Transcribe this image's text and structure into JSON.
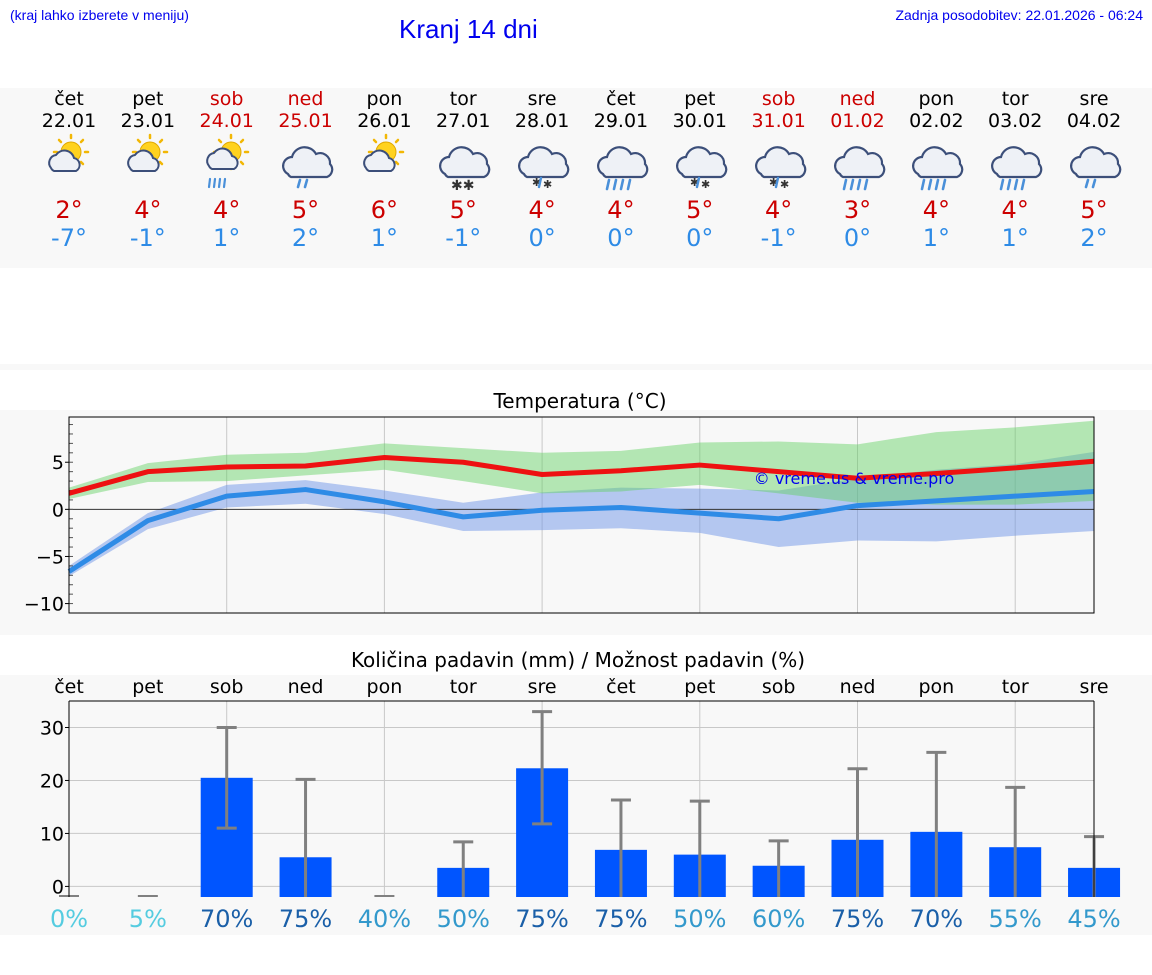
{
  "header": {
    "hint": "(kraj lahko izberete v meniju)",
    "title": "Kranj 14 dni",
    "updated_label": "Zadnja posodobitev:",
    "updated_value": "22.01.2026 - 06:24"
  },
  "colors": {
    "link": "#0000ee",
    "max": "#cc0000",
    "min": "#2e8be6",
    "bar": "#0055ff",
    "pct_low": "#55cce0",
    "pct_mid": "#3399cc",
    "pct_high": "#1a5fa8"
  },
  "days": [
    {
      "name": "čet",
      "date": "22.01",
      "weekend": false,
      "icon": "sun-cloud",
      "tmax": "2°",
      "tmin": "-7°"
    },
    {
      "name": "pet",
      "date": "23.01",
      "weekend": false,
      "icon": "sun-cloud",
      "tmax": "4°",
      "tmin": "-1°"
    },
    {
      "name": "sob",
      "date": "24.01",
      "weekend": true,
      "icon": "sun-cloud-rain",
      "tmax": "4°",
      "tmin": "1°"
    },
    {
      "name": "ned",
      "date": "25.01",
      "weekend": true,
      "icon": "cloud-rain",
      "tmax": "5°",
      "tmin": "2°"
    },
    {
      "name": "pon",
      "date": "26.01",
      "weekend": false,
      "icon": "sun-cloud",
      "tmax": "6°",
      "tmin": "1°"
    },
    {
      "name": "tor",
      "date": "27.01",
      "weekend": false,
      "icon": "cloud-snow",
      "tmax": "5°",
      "tmin": "-1°"
    },
    {
      "name": "sre",
      "date": "28.01",
      "weekend": false,
      "icon": "cloud-sleet",
      "tmax": "4°",
      "tmin": "0°"
    },
    {
      "name": "čet",
      "date": "29.01",
      "weekend": false,
      "icon": "cloud-heavy-rain",
      "tmax": "4°",
      "tmin": "0°"
    },
    {
      "name": "pet",
      "date": "30.01",
      "weekend": false,
      "icon": "cloud-sleet",
      "tmax": "5°",
      "tmin": "0°"
    },
    {
      "name": "sob",
      "date": "31.01",
      "weekend": true,
      "icon": "cloud-sleet",
      "tmax": "4°",
      "tmin": "-1°"
    },
    {
      "name": "ned",
      "date": "01.02",
      "weekend": true,
      "icon": "cloud-heavy-rain",
      "tmax": "3°",
      "tmin": "0°"
    },
    {
      "name": "pon",
      "date": "02.02",
      "weekend": false,
      "icon": "cloud-heavy-rain",
      "tmax": "4°",
      "tmin": "1°"
    },
    {
      "name": "tor",
      "date": "03.02",
      "weekend": false,
      "icon": "cloud-heavy-rain",
      "tmax": "4°",
      "tmin": "1°"
    },
    {
      "name": "sre",
      "date": "04.02",
      "weekend": false,
      "icon": "cloud-rain",
      "tmax": "5°",
      "tmin": "2°"
    }
  ],
  "chart_data": [
    {
      "type": "line",
      "title": "Temperatura (°C)",
      "watermark": "© vreme.us & vreme.pro",
      "ylim": [
        -11,
        9.8
      ],
      "yticks": [
        -10,
        -5,
        0,
        5
      ],
      "ytick_labels": [
        "−10",
        "−5",
        "0",
        "5"
      ],
      "x": [
        0,
        1,
        2,
        3,
        4,
        5,
        6,
        7,
        8,
        9,
        10,
        11,
        12,
        13
      ],
      "series": [
        {
          "name": "max",
          "values": [
            1.7,
            4.0,
            4.5,
            4.6,
            5.5,
            5.0,
            3.7,
            4.1,
            4.7,
            4.0,
            3.3,
            3.8,
            4.4,
            5.1
          ],
          "band_low": [
            1.1,
            2.9,
            3.0,
            3.6,
            4.2,
            3.0,
            1.7,
            1.9,
            2.6,
            1.7,
            0.7,
            0.5,
            0.5,
            0.9
          ],
          "band_high": [
            2.3,
            4.9,
            5.8,
            6.0,
            7.0,
            6.5,
            6.0,
            6.2,
            7.1,
            7.2,
            6.9,
            8.2,
            8.7,
            9.4
          ]
        },
        {
          "name": "min",
          "values": [
            -6.6,
            -1.2,
            1.4,
            2.1,
            0.8,
            -0.8,
            -0.1,
            0.2,
            -0.4,
            -1.0,
            0.4,
            0.9,
            1.4,
            1.9
          ],
          "band_low": [
            -7.1,
            -2.1,
            0.2,
            0.6,
            -0.5,
            -2.3,
            -2.2,
            -2.0,
            -2.5,
            -4.0,
            -3.3,
            -3.4,
            -2.8,
            -2.3
          ],
          "band_high": [
            -6.0,
            -0.4,
            2.6,
            3.1,
            2.0,
            0.7,
            1.8,
            2.3,
            2.2,
            2.0,
            3.3,
            4.2,
            4.8,
            6.1
          ]
        }
      ]
    },
    {
      "type": "bar",
      "title": "Količina padavin (mm) / Možnost padavin (%)",
      "ylim": [
        -2,
        35
      ],
      "yticks": [
        0,
        10,
        20,
        30
      ],
      "categories": [
        "čet",
        "pet",
        "sob",
        "ned",
        "pon",
        "tor",
        "sre",
        "čet",
        "pet",
        "sob",
        "ned",
        "pon",
        "tor",
        "sre"
      ],
      "values": [
        0,
        0,
        20.5,
        5.5,
        0,
        3.5,
        22.3,
        6.9,
        6.0,
        3.9,
        8.8,
        10.3,
        7.4,
        3.5
      ],
      "err_low": [
        0,
        0,
        11.0,
        0,
        0,
        0,
        11.8,
        0,
        0,
        0,
        0,
        0,
        0,
        0
      ],
      "err_high": [
        0,
        0,
        30.0,
        20.2,
        0,
        8.4,
        33.0,
        16.3,
        16.1,
        8.6,
        22.2,
        25.3,
        18.7,
        9.4
      ],
      "probability": [
        "0%",
        "5%",
        "70%",
        "75%",
        "40%",
        "50%",
        "75%",
        "75%",
        "50%",
        "60%",
        "75%",
        "70%",
        "55%",
        "45%"
      ]
    }
  ]
}
